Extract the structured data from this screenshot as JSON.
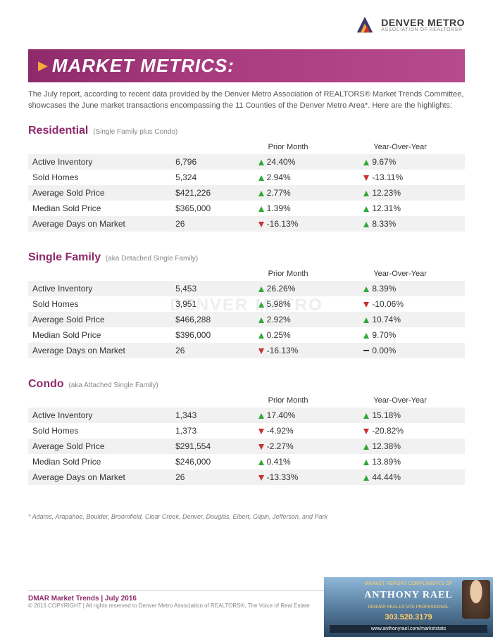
{
  "logo": {
    "line1": "DENVER METRO",
    "line2": "ASSOCIATION OF REALTORS®"
  },
  "banner": {
    "title": "MARKET METRICS:"
  },
  "intro": "The July report, according to recent data provided by the Denver Metro Association of REALTORS® Market Trends Committee,  showcases the June market transactions encompassing the 11 Counties of the Denver Metro Area*. Here are the highlights:",
  "headers": {
    "prior_month": "Prior Month",
    "yoy": "Year-Over-Year"
  },
  "sections": [
    {
      "title": "Residential",
      "sub": "(Single Family plus Condo)",
      "rows": [
        {
          "label": "Active Inventory",
          "value": "6,796",
          "pm_dir": "up",
          "pm": "24.40%",
          "yoy_dir": "up",
          "yoy": "9.67%"
        },
        {
          "label": "Sold Homes",
          "value": "5,324",
          "pm_dir": "up",
          "pm": "2.94%",
          "yoy_dir": "down",
          "yoy": "-13.11%"
        },
        {
          "label": "Average Sold Price",
          "value": "$421,226",
          "pm_dir": "up",
          "pm": "2.77%",
          "yoy_dir": "up",
          "yoy": "12.23%"
        },
        {
          "label": "Median Sold Price",
          "value": "$365,000",
          "pm_dir": "up",
          "pm": "1.39%",
          "yoy_dir": "up",
          "yoy": "12.31%"
        },
        {
          "label": "Average Days on Market",
          "value": "26",
          "pm_dir": "down",
          "pm": "-16.13%",
          "yoy_dir": "up",
          "yoy": "8.33%"
        }
      ]
    },
    {
      "title": "Single Family",
      "sub": "(aka Detached Single Family)",
      "rows": [
        {
          "label": "Active Inventory",
          "value": "5,453",
          "pm_dir": "up",
          "pm": "26.26%",
          "yoy_dir": "up",
          "yoy": "8.39%"
        },
        {
          "label": "Sold Homes",
          "value": "3,951",
          "pm_dir": "up",
          "pm": "5.98%",
          "yoy_dir": "down",
          "yoy": "-10.06%"
        },
        {
          "label": "Average Sold Price",
          "value": "$466,288",
          "pm_dir": "up",
          "pm": "2.92%",
          "yoy_dir": "up",
          "yoy": "10.74%"
        },
        {
          "label": "Median Sold Price",
          "value": "$396,000",
          "pm_dir": "up",
          "pm": "0.25%",
          "yoy_dir": "up",
          "yoy": "9.70%"
        },
        {
          "label": "Average Days on Market",
          "value": "26",
          "pm_dir": "down",
          "pm": "-16.13%",
          "yoy_dir": "flat",
          "yoy": "0.00%"
        }
      ]
    },
    {
      "title": "Condo",
      "sub": "(aka Attached Single Family)",
      "rows": [
        {
          "label": "Active Inventory",
          "value": "1,343",
          "pm_dir": "up",
          "pm": "17.40%",
          "yoy_dir": "up",
          "yoy": "15.18%"
        },
        {
          "label": "Sold Homes",
          "value": "1,373",
          "pm_dir": "down",
          "pm": "-4.92%",
          "yoy_dir": "down",
          "yoy": "-20.82%"
        },
        {
          "label": "Average Sold Price",
          "value": "$291,554",
          "pm_dir": "down",
          "pm": "-2.27%",
          "yoy_dir": "up",
          "yoy": "12.38%"
        },
        {
          "label": "Median Sold Price",
          "value": "$246,000",
          "pm_dir": "up",
          "pm": "0.41%",
          "yoy_dir": "up",
          "yoy": "13.89%"
        },
        {
          "label": "Average Days on Market",
          "value": "26",
          "pm_dir": "down",
          "pm": "-13.33%",
          "yoy_dir": "up",
          "yoy": "44.44%"
        }
      ]
    }
  ],
  "footnote": "*  Adams, Arapahoe, Boulder, Broomfield, Clear Creek, Denver, Douglas, Elbert, Gilpin, Jefferson, and Park",
  "footer": {
    "title": "DMAR Market Trends | July 2016",
    "copy": "© 2016 COPYRIGHT | All rights reserved to Denver Metro Association of REALTORS®, The Voice of Real Estate"
  },
  "ad": {
    "top": "MARKET REPORT COMPLIMENTS OF",
    "name": "ANTHONY RAEL",
    "sub": "DENVER REAL ESTATE PROFESSIONAL",
    "phone": "303.520.3179",
    "url": "www.anthonyrael.com/marketstats"
  },
  "watermark": {
    "line1": "DENVER METRO",
    "line2": "ASSOCIATION OF REALTORS"
  },
  "colors": {
    "brand": "#8e2a6b",
    "up": "#2ea836",
    "down": "#c93030",
    "accent": "#f7a93b",
    "row_alt": "#f1f1f1"
  }
}
